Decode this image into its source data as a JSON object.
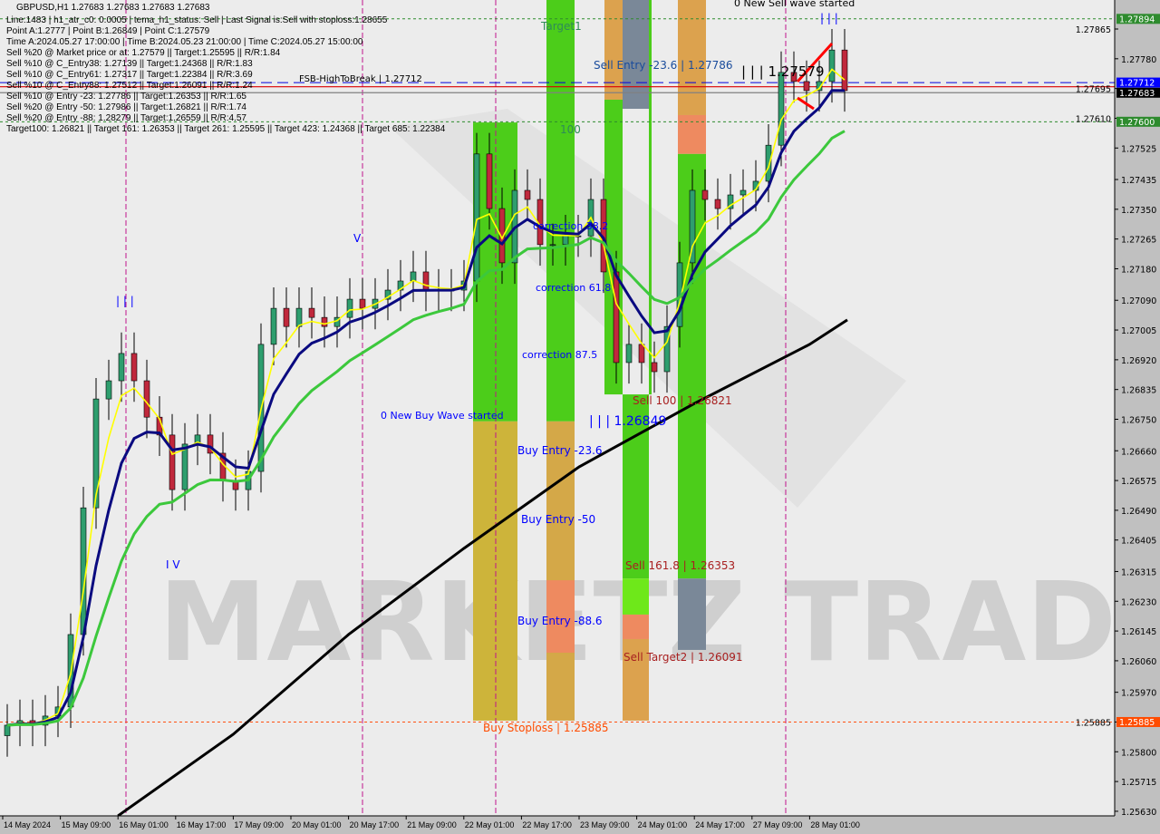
{
  "header": {
    "title": "GBPUSD,H1  1.27683 1.27683 1.27683 1.27683",
    "info_lines": [
      "Line:1483 | h1_atr_c0: 0.0005 | tema_h1_status: Sell | Last Signal is:Sell with stoploss:1.28655",
      "Point A:1.2777 | Point B:1.26849 | Point C:1.27579",
      "Time A:2024.05.27 17:00:00 | Time B:2024.05.23 21:00:00 | Time C:2024.05.27 15:00:00",
      "Sell %20 @ Market price or at: 1.27579 || Target:1.25595 || R/R:1.84",
      "Sell %10 @ C_Entry38: 1.27139 || Target:1.24368 || R/R:1.83",
      "Sell %10 @ C_Entry61: 1.27317 || Target:1.22384 || R/R:3.69",
      "Sell %10 @ C_Entry88: 1.27512 || Target:1.26091 || R/R:1.24",
      "Sell %10 @ Entry -23: 1.27786 || Target:1.26353 || R/R:1.65",
      "Sell %20 @ Entry -50: 1.27986 || Target:1.26821 || R/R:1.74",
      "Sell %20 @ Entry -88: 1.28279 || Target:1.26559 || R/R:4.57",
      "Target100: 1.26821 || Target 161: 1.26353 || Target 261: 1.25595 || Target 423: 1.24368 || Target 685: 1.22384"
    ]
  },
  "chart_data": {
    "type": "candlestick",
    "symbol": "GBPUSD",
    "timeframe": "H1",
    "ylim": [
      1.25617,
      1.27948
    ],
    "y_ticks": [
      "1.27865",
      "1.27780",
      "1.27695",
      "1.27610",
      "1.27525",
      "1.27435",
      "1.27350",
      "1.27265",
      "1.27180",
      "1.27090",
      "1.27005",
      "1.26920",
      "1.26835",
      "1.26750",
      "1.26660",
      "1.26575",
      "1.26490",
      "1.26405",
      "1.26315",
      "1.26230",
      "1.26145",
      "1.26060",
      "1.25970",
      "1.25885",
      "1.25800",
      "1.25715",
      "1.25630"
    ],
    "x_ticks": [
      "14 May 2024",
      "15 May 09:00",
      "16 May 01:00",
      "16 May 17:00",
      "17 May 09:00",
      "20 May 01:00",
      "20 May 17:00",
      "21 May 09:00",
      "22 May 01:00",
      "22 May 17:00",
      "23 May 09:00",
      "24 May 01:00",
      "24 May 17:00",
      "27 May 09:00",
      "28 May 01:00"
    ],
    "close": [
      1.25876,
      1.25889,
      1.25876,
      1.25902,
      1.25928,
      1.26135,
      1.26497,
      1.26808,
      1.2686,
      1.26938,
      1.2686,
      1.26756,
      1.26705,
      1.26549,
      1.26679,
      1.26705,
      1.26653,
      1.26575,
      1.26549,
      1.26601,
      1.26964,
      1.27067,
      1.27015,
      1.27067,
      1.27041,
      1.27015,
      1.27041,
      1.27093,
      1.27067,
      1.27093,
      1.27119,
      1.27145,
      1.27171,
      1.27119,
      1.27119,
      1.27119,
      1.27145,
      1.27508,
      1.27352,
      1.27197,
      1.27404,
      1.27378,
      1.27249,
      1.27249,
      1.27274,
      1.27274,
      1.27378,
      1.27171,
      1.26912,
      1.26964,
      1.26912,
      1.26886,
      1.27015,
      1.27197,
      1.27404,
      1.27378,
      1.27352,
      1.27391,
      1.27404,
      1.2743,
      1.27533,
      1.27741,
      1.27715,
      1.27689,
      1.27715,
      1.27805,
      1.27689
    ],
    "ma_black": [
      [
        "16 May 01:00",
        1.25617
      ],
      [
        "17 May 09:00",
        1.2585
      ],
      [
        "20 May 17:00",
        1.26135
      ],
      [
        "22 May 01:00",
        1.26381
      ],
      [
        "23 May 09:00",
        1.26614
      ],
      [
        "24 May 17:00",
        1.26795
      ],
      [
        "28 May 01:00",
        1.26964
      ]
    ],
    "zones": [
      {
        "name": "buy-zone-1-green",
        "color": "#4ccd1a",
        "top": 1.27598,
        "bottom": 1.26744
      },
      {
        "name": "buy-zone-1-gold",
        "color": "#cdb43a",
        "top": 1.26744,
        "bottom": 1.25889
      },
      {
        "name": "buy-zone-2-green",
        "color": "#4ccd1a",
        "top": 1.27948,
        "bottom": 1.26744
      },
      {
        "name": "buy-zone-2-gold",
        "color": "#d4a848",
        "top": 1.26744,
        "bottom": 1.25889
      },
      {
        "name": "buy-zone-2-salmon",
        "color": "#ee8a60",
        "top": 1.2629,
        "bottom": 1.26083
      },
      {
        "name": "sell-zone-1-orange",
        "color": "#dca24e",
        "top": 1.27948,
        "bottom": 1.27663
      },
      {
        "name": "sell-zone-1-green",
        "color": "#4ccd1a",
        "top": 1.27663,
        "bottom": 1.26821
      },
      {
        "name": "sell-zone-2-gray",
        "color": "#7a8898",
        "top": 1.27948,
        "bottom": 1.27637
      },
      {
        "name": "sell-zone-2-green",
        "color": "#4ccd1a",
        "top": 1.26821,
        "bottom": 1.26295
      },
      {
        "name": "sell-zone-2-lime",
        "color": "#6ee81a",
        "top": 1.26295,
        "bottom": 1.26192
      },
      {
        "name": "sell-zone-2-salmon",
        "color": "#ee8a60",
        "top": 1.26192,
        "bottom": 1.26122
      },
      {
        "name": "sell-zone-2-orange",
        "color": "#dca24e",
        "top": 1.26122,
        "bottom": 1.25889
      },
      {
        "name": "sell-zone-3-orange",
        "color": "#dca24e",
        "top": 1.27948,
        "bottom": 1.27619
      },
      {
        "name": "sell-zone-3-salmon",
        "color": "#ee8a60",
        "top": 1.27619,
        "bottom": 1.27508
      },
      {
        "name": "sell-zone-3-green",
        "color": "#4ccd1a",
        "top": 1.27508,
        "bottom": 1.26295
      },
      {
        "name": "sell-zone-3-gray",
        "color": "#7a8898",
        "top": 1.26295,
        "bottom": 1.26091
      }
    ],
    "hlines": [
      {
        "name": "target-line",
        "price": 1.27894,
        "color": "#2e8b2e",
        "style": "dotted",
        "badge": "1.27894"
      },
      {
        "name": "fsb-high-line",
        "price": 1.27712,
        "color": "#0000dd",
        "style": "dashed",
        "badge": "1.27712"
      },
      {
        "name": "signal-line",
        "price": 1.277,
        "color": "#dd0000",
        "style": "solid",
        "badge": ""
      },
      {
        "name": "bid-line",
        "price": 1.27683,
        "color": "#808080",
        "style": "solid",
        "badge": "1.27683"
      },
      {
        "name": "level-line",
        "price": 1.276,
        "color": "#2e8b2e",
        "style": "dotted",
        "badge": "1.27600"
      },
      {
        "name": "stoploss-line",
        "price": 1.25885,
        "color": "#ff5010",
        "style": "dotted",
        "badge": "1.25885"
      }
    ],
    "badge_colors": {
      "1.27894": "#2e8b2e",
      "1.27712": "#0000ff",
      "1.27683": "#000000",
      "1.27600": "#2e8b2e",
      "1.25885": "#ff4c00"
    },
    "annotations": {
      "target1": "Target1",
      "level100": "100",
      "sell_entry": "Sell Entry -23.6 | 1.27786",
      "point_c": "| | | 1.27579",
      "new_sell_wave": "0 New Sell wave started",
      "wave_marker_top": "| | |",
      "wave_marker_left": "| | |",
      "wave_v": "V",
      "wave_iv": "I V",
      "correction382": "correction 38.2",
      "correction618": "correction 61.8",
      "correction875": "correction 87.5",
      "new_buy_wave": "0 New Buy Wave started",
      "sell100": "Sell 100 | 1.26821",
      "point_b": "| | | 1.26849",
      "buy_entry_236": "Buy Entry -23.6",
      "buy_entry_50": "Buy Entry -50",
      "sell1618": "Sell 161.8 | 1.26353",
      "buy_entry_886": "Buy Entry -88.6",
      "sell_target2": "Sell Target2 | 1.26091",
      "buy_stoploss": "Buy Stoploss | 1.25885",
      "fsb_high": "FSB-HighToBreak | 1.27712"
    },
    "watermark": "MARKETZ TRADE",
    "colors": {
      "ma_fast": "#ffff00",
      "ma_mid": "#0a0a80",
      "ma_slow": "#3cc83c",
      "ma_long": "#000000",
      "bull": "#2e9e6e",
      "bear": "#c0283c"
    }
  }
}
